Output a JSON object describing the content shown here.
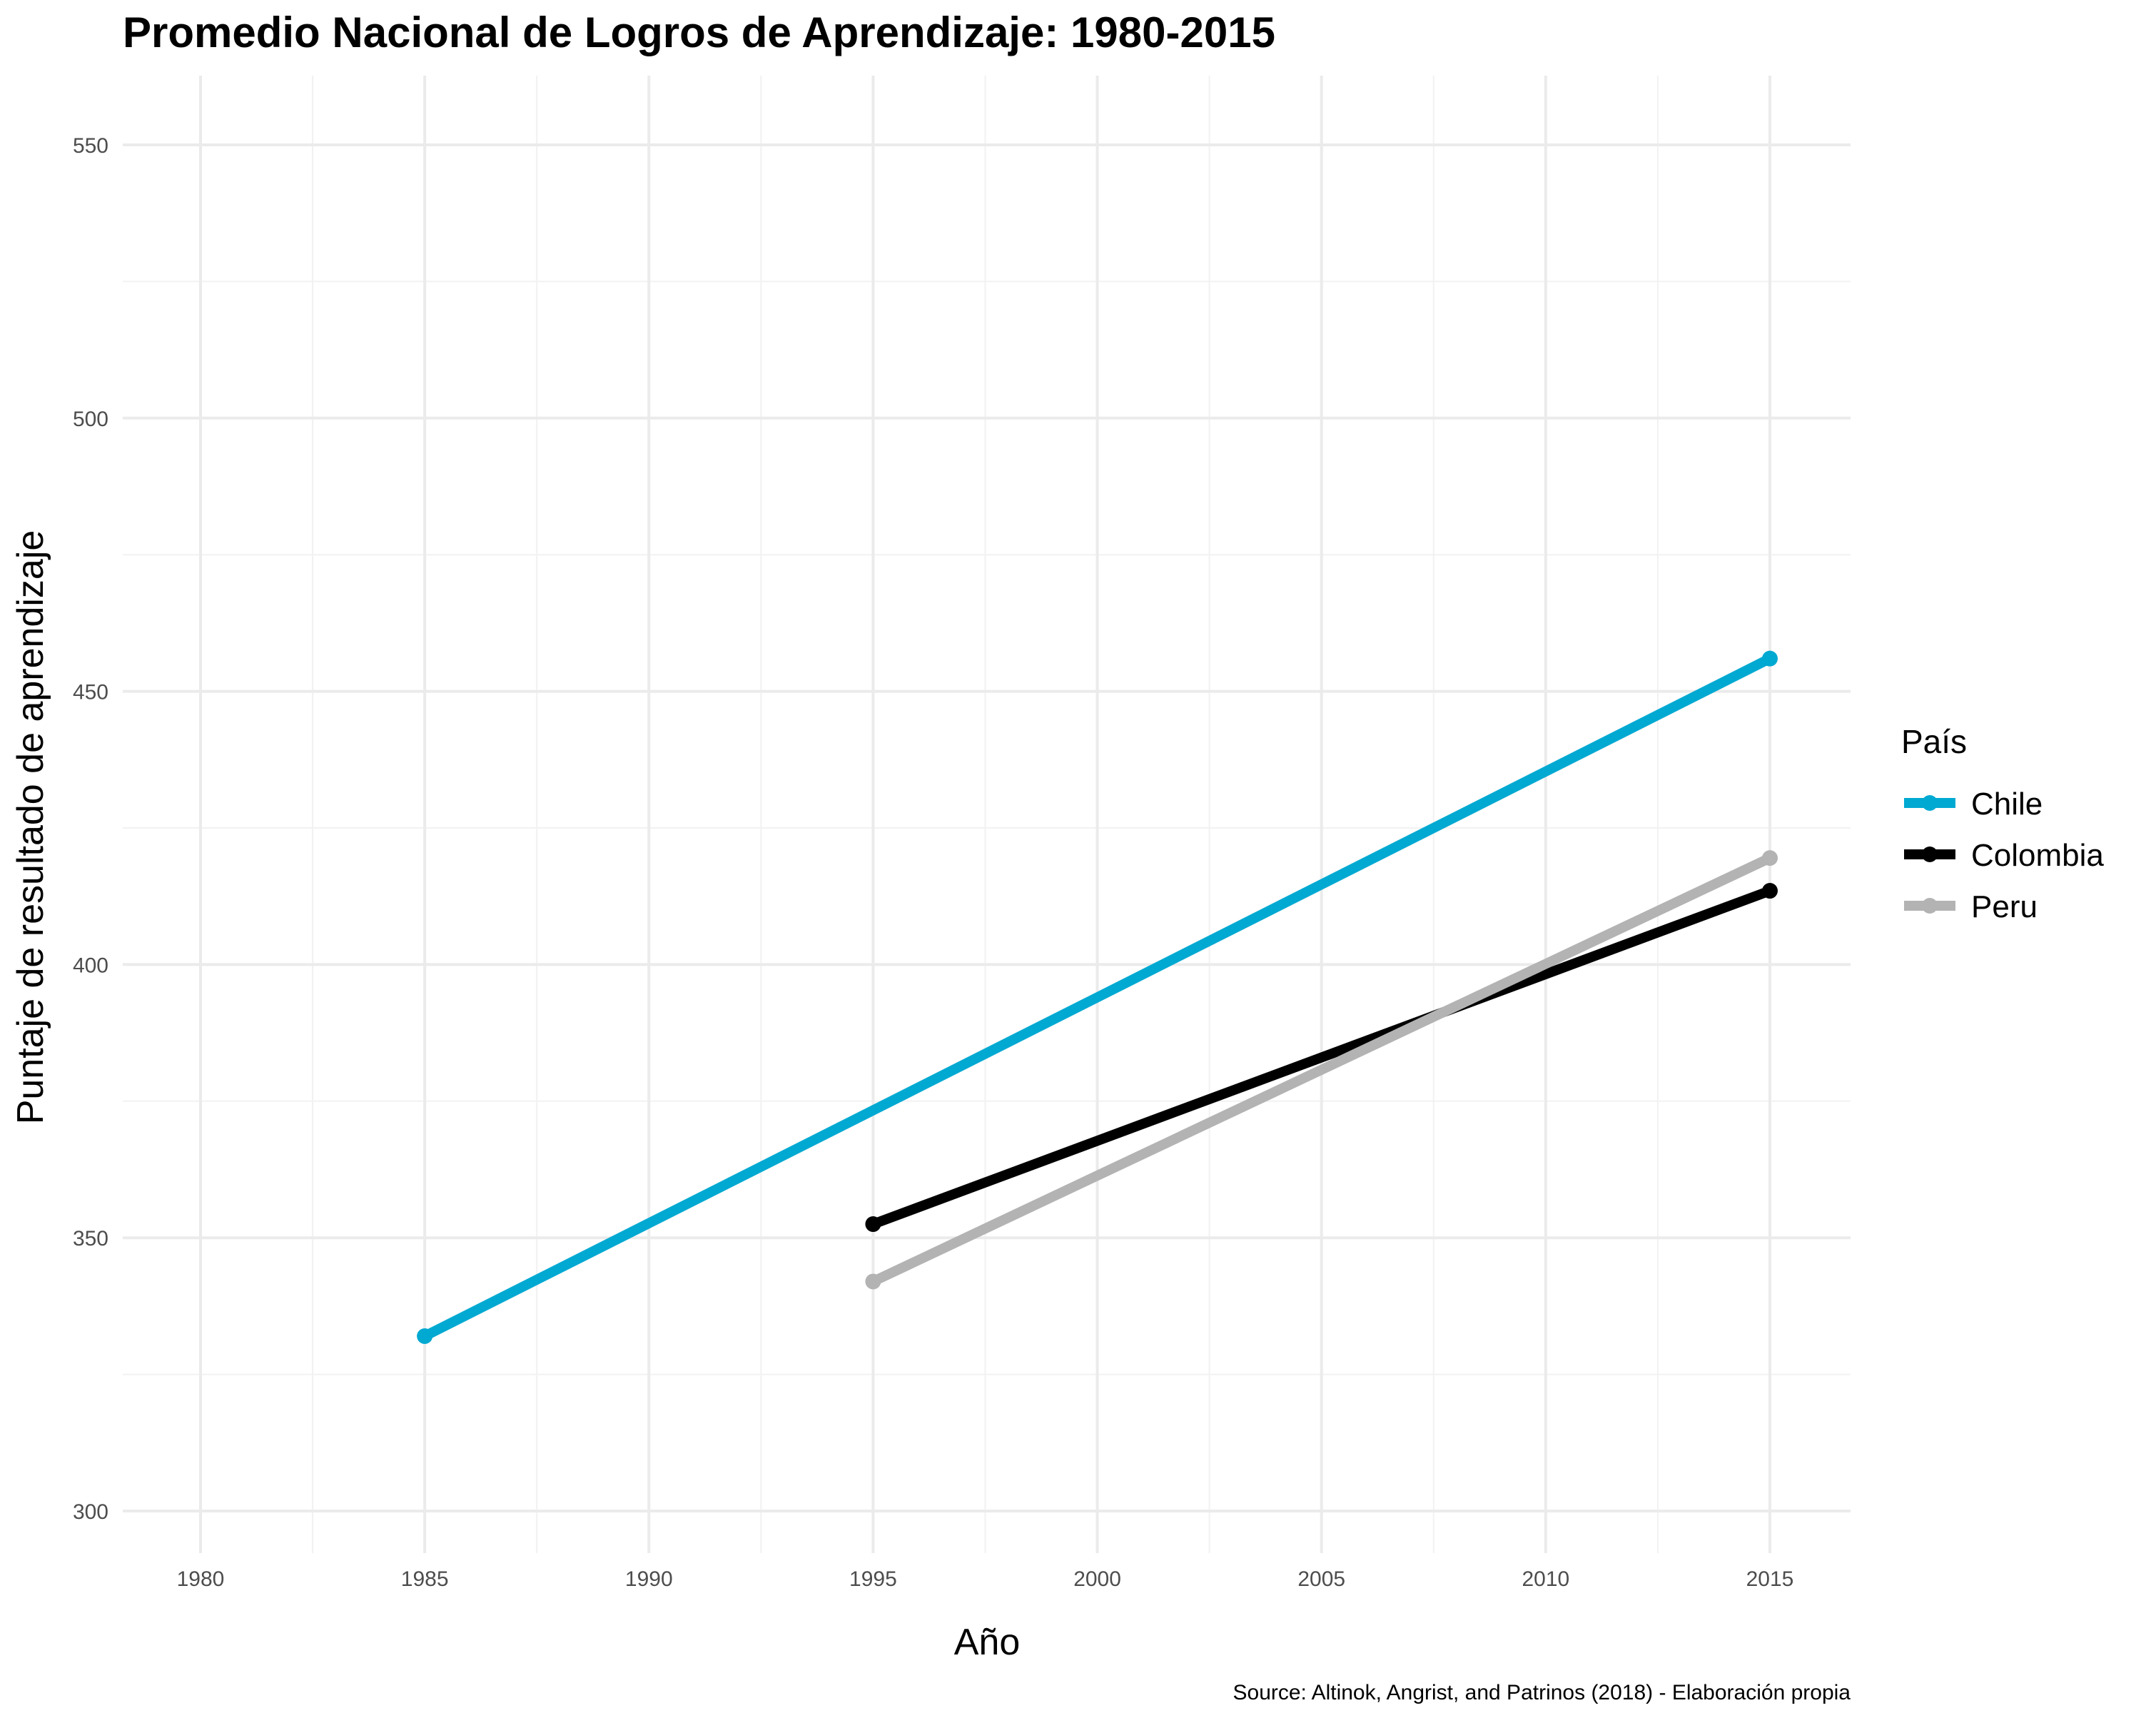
{
  "chart_data": {
    "type": "line",
    "title": "Promedio Nacional de Logros de Aprendizaje: 1980-2015",
    "xlabel": "Año",
    "ylabel": "Puntaje de resultado de aprendizaje",
    "caption": "Source: Altinok, Angrist, and Patrinos (2018) - Elaboración propia",
    "xlim": [
      1980,
      2015
    ],
    "ylim": [
      300,
      550
    ],
    "x_ticks": [
      1980,
      1985,
      1990,
      1995,
      2000,
      2005,
      2010,
      2015
    ],
    "y_ticks": [
      300,
      350,
      400,
      450,
      500,
      550
    ],
    "grid": true,
    "legend": {
      "title": "País",
      "placement": "right"
    },
    "series": [
      {
        "name": "Chile",
        "color": "#00a9d1",
        "x": [
          1985,
          2015
        ],
        "y": [
          332,
          456
        ]
      },
      {
        "name": "Colombia",
        "color": "#000000",
        "x": [
          1995,
          2015
        ],
        "y": [
          352.5,
          413.5
        ]
      },
      {
        "name": "Peru",
        "color": "#b3b3b3",
        "x": [
          1995,
          2015
        ],
        "y": [
          342,
          419.5
        ]
      }
    ]
  }
}
